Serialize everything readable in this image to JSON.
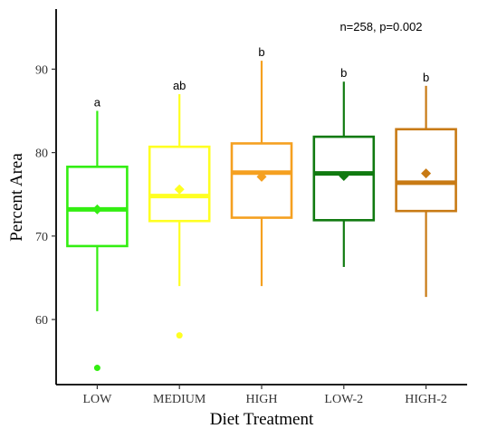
{
  "chart_data": {
    "type": "boxplot",
    "xlabel": "Diet Treatment",
    "ylabel": "Percent Area",
    "ylim": [
      52.2,
      97.2
    ],
    "yticks": [
      60,
      70,
      80,
      90
    ],
    "grid": false,
    "annotation": "n=258, p=0.002",
    "categories": [
      "LOW",
      "MEDIUM",
      "HIGH",
      "LOW-2",
      "HIGH-2"
    ],
    "groups": [
      {
        "category": "LOW",
        "color": "#33ee11",
        "whisker_low": 61.0,
        "q1": 68.8,
        "median": 73.2,
        "q3": 78.3,
        "whisker_high": 85.0,
        "mean": 73.2,
        "outliers": [
          54.2
        ],
        "sig": "a"
      },
      {
        "category": "MEDIUM",
        "color": "#ffff22",
        "whisker_low": 64.0,
        "q1": 71.8,
        "median": 74.8,
        "q3": 80.7,
        "whisker_high": 87.0,
        "mean": 75.6,
        "outliers": [
          58.1
        ],
        "sig": "ab"
      },
      {
        "category": "HIGH",
        "color": "#f5a020",
        "whisker_low": 64.0,
        "q1": 72.2,
        "median": 77.6,
        "q3": 81.1,
        "whisker_high": 91.0,
        "mean": 77.1,
        "outliers": [],
        "sig": "b"
      },
      {
        "category": "LOW-2",
        "color": "#107a10",
        "whisker_low": 66.3,
        "q1": 71.9,
        "median": 77.5,
        "q3": 81.9,
        "whisker_high": 88.5,
        "mean": 77.2,
        "outliers": [],
        "sig": "b"
      },
      {
        "category": "HIGH-2",
        "color": "#c87a14",
        "whisker_low": 62.7,
        "q1": 73.0,
        "median": 76.4,
        "q3": 82.8,
        "whisker_high": 88.0,
        "mean": 77.5,
        "outliers": [],
        "sig": "b"
      }
    ]
  }
}
